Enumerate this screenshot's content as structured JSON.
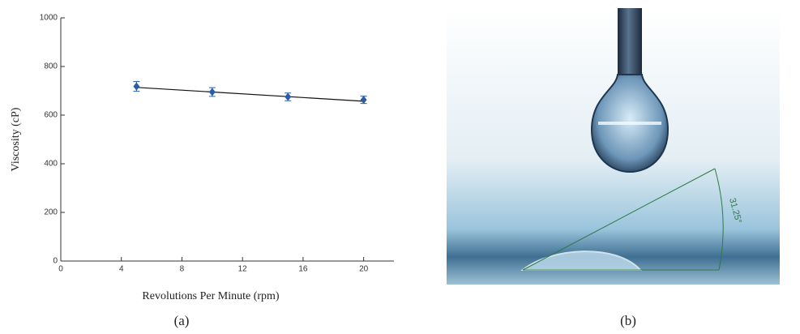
{
  "chart_data": {
    "type": "scatter",
    "xlabel": "Revolutions Per Minute (rpm)",
    "ylabel": "Viscosity (cP)",
    "xlim": [
      0,
      22
    ],
    "ylim": [
      0,
      1000
    ],
    "xticks": [
      0,
      4,
      8,
      12,
      16,
      20
    ],
    "yticks": [
      0,
      200,
      400,
      600,
      800,
      1000
    ],
    "x": [
      5,
      10,
      15,
      20
    ],
    "values": [
      718,
      695,
      675,
      663
    ],
    "errors": [
      20,
      18,
      16,
      15
    ],
    "color": "#2a5ca8",
    "fit_line": {
      "x": [
        5,
        20
      ],
      "y": [
        714,
        657
      ],
      "color": "#111"
    }
  },
  "figure": {
    "panel_a_label": "(a)",
    "panel_b_label": "(b)",
    "contact_angle_label": "31.25°"
  }
}
